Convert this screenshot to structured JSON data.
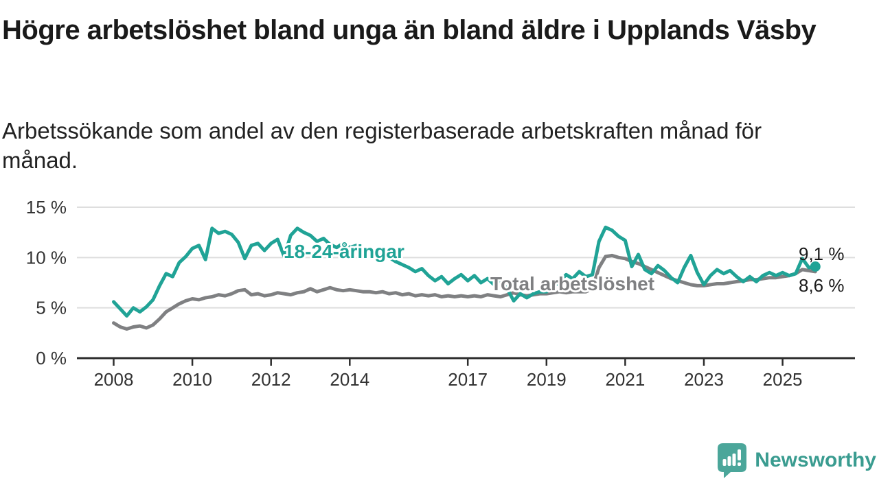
{
  "header": {
    "title": "Högre arbetslöshet bland unga än bland äldre i Upplands Väsby",
    "subtitle": "Arbetssökande som andel av den registerbaserade arbetskraften månad för månad."
  },
  "chart_data": {
    "type": "line",
    "title": "Högre arbetslöshet bland unga än bland äldre i Upplands Väsby",
    "subtitle": "Arbetssökande som andel av den registerbaserade arbetskraften månad för månad.",
    "x_start_year": 2008,
    "x_step_months": 2,
    "x_end": "2025",
    "ylim": [
      0,
      15
    ],
    "grid": true,
    "y_ticks": [
      {
        "value": 15,
        "label": "15 %"
      },
      {
        "value": 10,
        "label": "10 %"
      },
      {
        "value": 5,
        "label": "5 %"
      },
      {
        "value": 0,
        "label": "0 %"
      }
    ],
    "x_ticks": [
      "2008",
      "2010",
      "2012",
      "2014",
      "2017",
      "2019",
      "2021",
      "2023",
      "2025"
    ],
    "x_tick_years": [
      2008,
      2010,
      2012,
      2014,
      2017,
      2019,
      2021,
      2023,
      2025
    ],
    "series": [
      {
        "name": "18-24-åringar",
        "color": "#20a396",
        "end_label": "9,1 %",
        "end_value": 9.1,
        "end_dot": true,
        "values": [
          5.6,
          4.9,
          4.2,
          5.0,
          4.6,
          5.1,
          5.8,
          7.2,
          8.4,
          8.1,
          9.5,
          10.1,
          10.9,
          11.2,
          9.8,
          12.9,
          12.4,
          12.6,
          12.3,
          11.5,
          9.9,
          11.2,
          11.4,
          10.7,
          11.4,
          11.8,
          10.1,
          12.2,
          12.9,
          12.5,
          12.2,
          11.6,
          11.9,
          11.3,
          11.0,
          11.4,
          11.0,
          11.2,
          10.6,
          10.3,
          10.6,
          9.9,
          10.0,
          9.6,
          9.3,
          9.0,
          8.6,
          8.9,
          8.2,
          7.7,
          8.1,
          7.4,
          7.9,
          8.3,
          7.7,
          8.2,
          7.5,
          7.9,
          7.3,
          7.6,
          6.9,
          5.7,
          6.4,
          6.0,
          6.4,
          6.6,
          6.6,
          7.1,
          7.6,
          8.3,
          7.9,
          8.6,
          8.1,
          8.3,
          11.6,
          13.0,
          12.7,
          12.1,
          11.7,
          9.1,
          10.3,
          8.8,
          8.4,
          9.2,
          8.7,
          8.0,
          7.5,
          9.0,
          10.2,
          8.5,
          7.3,
          8.2,
          8.8,
          8.4,
          8.7,
          8.1,
          7.6,
          8.1,
          7.6,
          8.2,
          8.5,
          8.2,
          8.5,
          8.2,
          8.4,
          9.9,
          9.0,
          9.1
        ]
      },
      {
        "name": "Total arbetslöshet",
        "color": "#7f8082",
        "end_label": "8,6 %",
        "end_value": 8.6,
        "end_dot": false,
        "values": [
          3.5,
          3.1,
          2.9,
          3.1,
          3.2,
          3.0,
          3.3,
          3.9,
          4.6,
          5.0,
          5.4,
          5.7,
          5.9,
          5.8,
          6.0,
          6.1,
          6.3,
          6.2,
          6.4,
          6.7,
          6.8,
          6.3,
          6.4,
          6.2,
          6.3,
          6.5,
          6.4,
          6.3,
          6.5,
          6.6,
          6.9,
          6.6,
          6.8,
          7.0,
          6.8,
          6.7,
          6.8,
          6.7,
          6.6,
          6.6,
          6.5,
          6.6,
          6.4,
          6.5,
          6.3,
          6.4,
          6.2,
          6.3,
          6.2,
          6.3,
          6.1,
          6.2,
          6.1,
          6.2,
          6.1,
          6.2,
          6.1,
          6.3,
          6.2,
          6.1,
          6.3,
          6.5,
          6.3,
          6.2,
          6.3,
          6.4,
          6.4,
          6.5,
          6.6,
          6.5,
          6.6,
          6.6,
          6.6,
          6.9,
          9.0,
          10.1,
          10.2,
          10.0,
          9.9,
          9.6,
          9.4,
          9.1,
          8.8,
          8.5,
          8.2,
          7.9,
          7.7,
          7.5,
          7.3,
          7.2,
          7.2,
          7.3,
          7.4,
          7.4,
          7.5,
          7.6,
          7.7,
          7.8,
          7.8,
          7.9,
          8.0,
          8.0,
          8.1,
          8.2,
          8.4,
          8.8,
          8.7,
          8.6
        ]
      }
    ],
    "colors": {
      "grid": "#dedede",
      "axis": "#2d2d2d",
      "tick_text": "#333333"
    }
  },
  "footer": {
    "brand": "Newsworthy",
    "brand_text_color": "#3a9c90",
    "brand_icon_color": "#4ba69a",
    "brand_icon": "bar-chart-speech-bubble-icon"
  }
}
